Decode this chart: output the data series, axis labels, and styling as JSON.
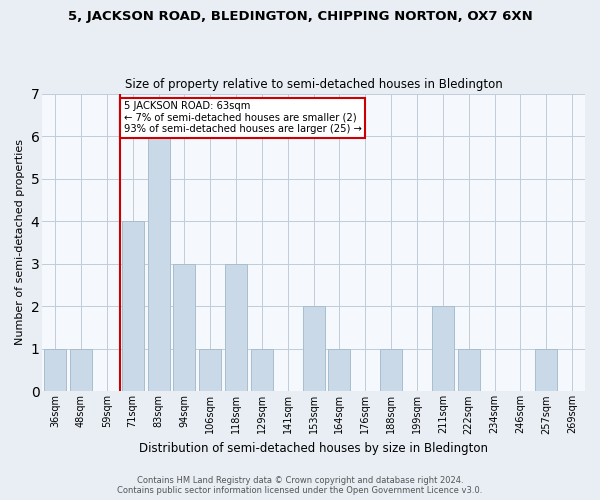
{
  "title": "5, JACKSON ROAD, BLEDINGTON, CHIPPING NORTON, OX7 6XN",
  "subtitle": "Size of property relative to semi-detached houses in Bledington",
  "xlabel": "Distribution of semi-detached houses by size in Bledington",
  "ylabel": "Number of semi-detached properties",
  "bins": [
    "36sqm",
    "48sqm",
    "59sqm",
    "71sqm",
    "83sqm",
    "94sqm",
    "106sqm",
    "118sqm",
    "129sqm",
    "141sqm",
    "153sqm",
    "164sqm",
    "176sqm",
    "188sqm",
    "199sqm",
    "211sqm",
    "222sqm",
    "234sqm",
    "246sqm",
    "257sqm",
    "269sqm"
  ],
  "counts": [
    1,
    1,
    0,
    4,
    6,
    3,
    1,
    3,
    1,
    0,
    2,
    1,
    0,
    1,
    0,
    2,
    1,
    0,
    0,
    1,
    0
  ],
  "bar_color": "#c9d9e8",
  "bar_edge_color": "#a8bece",
  "ylim": [
    0,
    7
  ],
  "yticks": [
    0,
    1,
    2,
    3,
    4,
    5,
    6,
    7
  ],
  "property_line_color": "#cc0000",
  "annotation_line1": "5 JACKSON ROAD: 63sqm",
  "annotation_line2": "← 7% of semi-detached houses are smaller (2)",
  "annotation_line3": "93% of semi-detached houses are larger (25) →",
  "annotation_box_color": "#cc0000",
  "footer_line1": "Contains HM Land Registry data © Crown copyright and database right 2024.",
  "footer_line2": "Contains public sector information licensed under the Open Government Licence v3.0.",
  "bg_color": "#e8eef4",
  "plot_bg_color": "#f5f8fc",
  "grid_color": "#c0ccd8"
}
